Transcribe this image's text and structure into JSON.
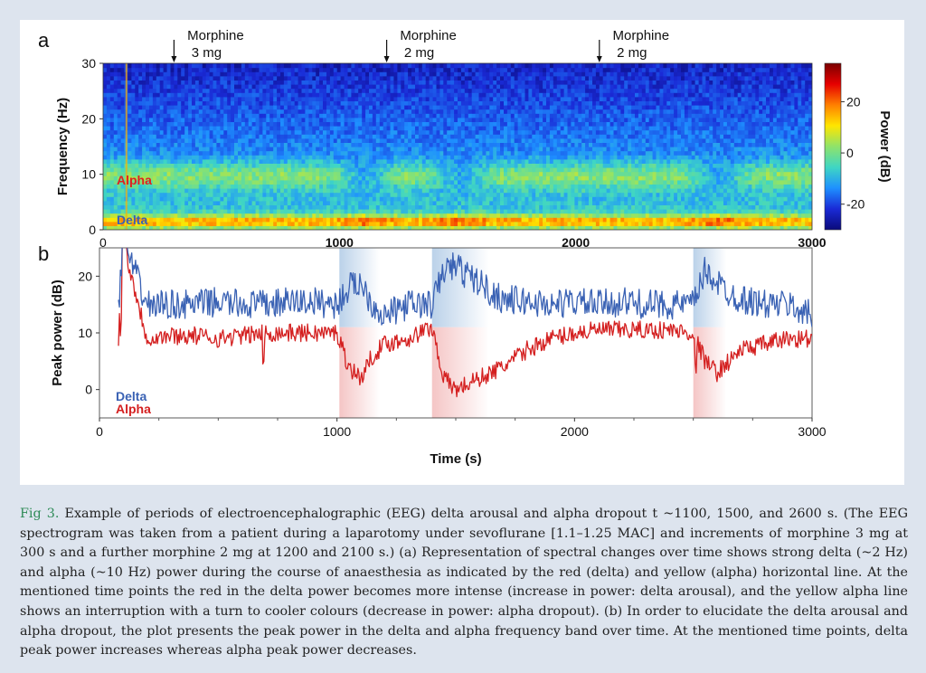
{
  "figure": {
    "panel_a_label": "a",
    "panel_b_label": "b",
    "annotations": [
      {
        "line1": "Morphine",
        "line2": "3 mg",
        "time": 300
      },
      {
        "line1": "Morphine",
        "line2": "2 mg",
        "time": 1200
      },
      {
        "line1": "Morphine",
        "line2": "2 mg",
        "time": 2100
      }
    ],
    "spectrogram": {
      "ylabel": "Frequency (Hz)",
      "yticks": [
        "0",
        "10",
        "20",
        "30"
      ],
      "xticks": [
        "0",
        "1000",
        "2000",
        "3000"
      ],
      "alpha_label": "Alpha",
      "delta_label": "Delta",
      "colorbar_label": "Power (dB)",
      "colorbar_ticks": [
        "20",
        "0",
        "-20"
      ],
      "colorbar_colors": [
        "#7a0000",
        "#e60000",
        "#ff7f00",
        "#ffe600",
        "#8fe36a",
        "#3fd6c4",
        "#1e90ff",
        "#1a2ad6",
        "#0a0a7a"
      ]
    },
    "peak_power": {
      "ylabel": "Peak power (dB)",
      "xlabel": "Time (s)",
      "yticks": [
        "0",
        "10",
        "20"
      ],
      "xticks": [
        "0",
        "1000",
        "2000",
        "3000"
      ],
      "delta_label": "Delta",
      "alpha_label": "Alpha",
      "delta_color": "#3a62b4",
      "alpha_color": "#d42020"
    }
  },
  "chart_data": [
    {
      "type": "heatmap",
      "title": "",
      "xlabel": "",
      "ylabel": "Frequency (Hz)",
      "xlim": [
        0,
        3000
      ],
      "ylim": [
        0,
        30
      ],
      "colorbar_label": "Power (dB)",
      "colorbar_range": [
        -30,
        35
      ],
      "bands": [
        {
          "name": "Delta",
          "frequency_hz": 2,
          "power_db": 25
        },
        {
          "name": "Alpha",
          "frequency_hz": 10,
          "power_db": 10
        }
      ],
      "events": [
        {
          "time": 1100,
          "label": "delta arousal / alpha dropout"
        },
        {
          "time": 1500,
          "label": "delta arousal / alpha dropout"
        },
        {
          "time": 2600,
          "label": "delta arousal / alpha dropout"
        }
      ]
    },
    {
      "type": "line",
      "title": "",
      "xlabel": "Time (s)",
      "ylabel": "Peak power (dB)",
      "xlim": [
        0,
        3000
      ],
      "ylim": [
        -5,
        25
      ],
      "highlight_periods": [
        [
          1010,
          1180
        ],
        [
          1400,
          1640
        ],
        [
          2500,
          2640
        ]
      ],
      "series": [
        {
          "name": "Delta",
          "x": [
            80,
            100,
            200,
            300,
            400,
            500,
            600,
            700,
            800,
            900,
            1000,
            1050,
            1100,
            1150,
            1200,
            1300,
            1400,
            1450,
            1500,
            1550,
            1600,
            1650,
            1700,
            1800,
            1900,
            2000,
            2100,
            2200,
            2300,
            2400,
            2500,
            2550,
            2600,
            2650,
            2700,
            2800,
            2900,
            3000
          ],
          "y": [
            14,
            26,
            15,
            15,
            15,
            15.5,
            15,
            15,
            15.5,
            15.5,
            15,
            18,
            19,
            15,
            13,
            15,
            15,
            21,
            22,
            20,
            19,
            17,
            16,
            15.5,
            15,
            15.5,
            15,
            15.5,
            15,
            15,
            15,
            21,
            19,
            17,
            16,
            15,
            15,
            13
          ]
        },
        {
          "name": "Alpha",
          "x": [
            80,
            100,
            200,
            300,
            400,
            500,
            600,
            700,
            800,
            900,
            1000,
            1050,
            1100,
            1150,
            1200,
            1300,
            1400,
            1450,
            1500,
            1550,
            1600,
            1700,
            1800,
            1900,
            2000,
            2100,
            2200,
            2300,
            2400,
            2500,
            2550,
            2600,
            2650,
            2700,
            2800,
            2900,
            3000
          ],
          "y": [
            9,
            26,
            9,
            9.5,
            9.5,
            9,
            9.5,
            10,
            10,
            10,
            10,
            4,
            2,
            6,
            8,
            9,
            11,
            2,
            0,
            1,
            2,
            4,
            7,
            9,
            10,
            10.5,
            10.5,
            10.5,
            10.5,
            10,
            5,
            3,
            5,
            7,
            8,
            9,
            9
          ]
        }
      ]
    }
  ],
  "caption": {
    "label": "Fig 3.",
    "text": " Example of periods of electroencephalographic (EEG) delta arousal and alpha dropout t ~1100, 1500, and 2600 s. (The EEG spectrogram was taken from a patient during a laparotomy under sevoflurane [1.1–1.25 MAC] and increments of morphine 3 mg at 300 s and a further morphine 2 mg at 1200 and 2100 s.) (a) Representation of spectral changes over time shows strong delta (~2 Hz) and alpha (~10 Hz) power during the course of anaesthesia as indicated by the red (delta) and yellow (alpha) horizontal line. At the mentioned time points the red in the delta power becomes more intense (increase in power: delta arousal), and the yellow alpha line shows an interruption with a turn to cooler colours (decrease in power: alpha dropout). (b) In order to elucidate the delta arousal and alpha dropout, the plot presents the peak power in the delta and alpha frequency band over time. At the mentioned time points, delta peak power increases whereas alpha peak power decreases."
  }
}
